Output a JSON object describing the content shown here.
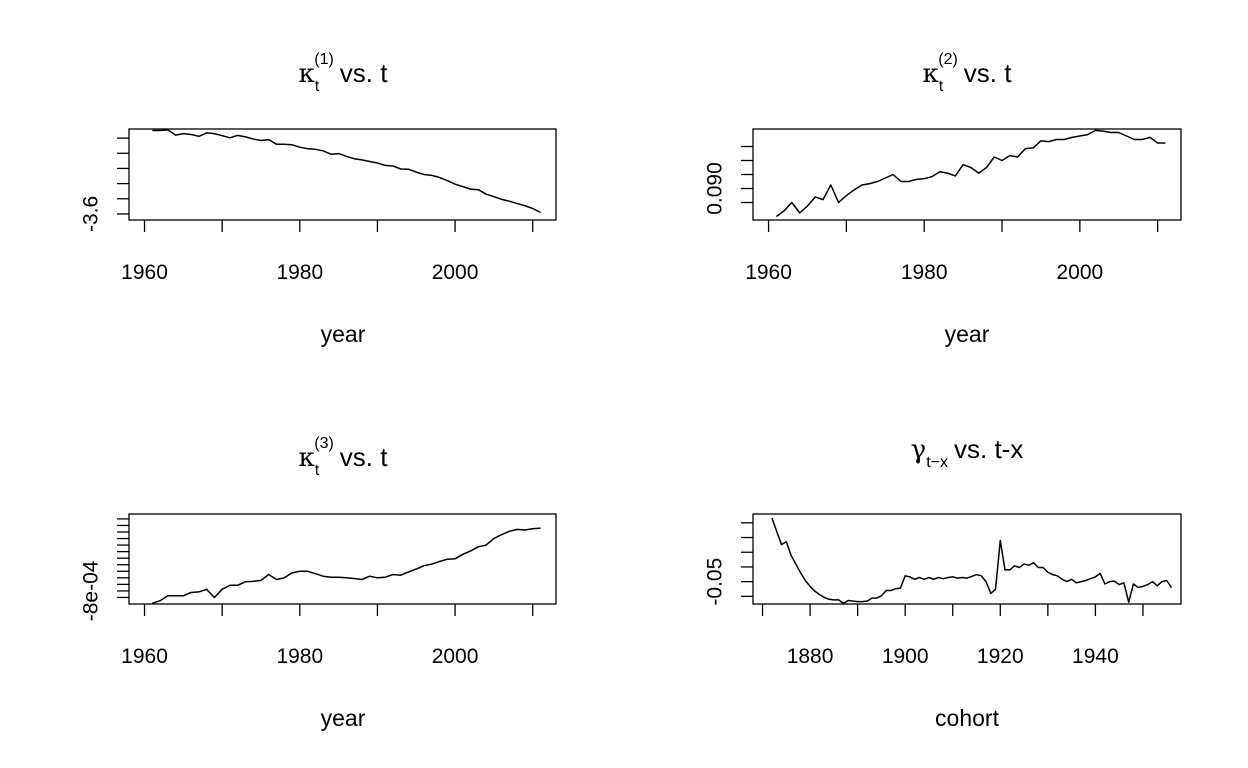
{
  "chart_data": [
    {
      "type": "line",
      "title": {
        "symbol": "κ",
        "sub": "t",
        "sup": "(1)",
        "text": "vs. t"
      },
      "xlabel": "year",
      "ylabel": "",
      "xlim": [
        1958,
        2013
      ],
      "ylim": [
        -3.62,
        -3.32
      ],
      "x_ticks": [
        1960,
        1970,
        1980,
        1990,
        2000,
        2010
      ],
      "x_tick_labels": [
        "1960",
        "1980",
        "2000"
      ],
      "y_ticks": [
        -3.6,
        -3.55,
        -3.5,
        -3.45,
        -3.4,
        -3.35
      ],
      "y_tick_labels": [
        "-3.6"
      ],
      "grid": false,
      "legend": "none",
      "x": [
        1961,
        1962,
        1963,
        1964,
        1965,
        1966,
        1967,
        1968,
        1969,
        1970,
        1971,
        1972,
        1973,
        1974,
        1975,
        1976,
        1977,
        1978,
        1979,
        1980,
        1981,
        1982,
        1983,
        1984,
        1985,
        1986,
        1987,
        1988,
        1989,
        1990,
        1991,
        1992,
        1993,
        1994,
        1995,
        1996,
        1997,
        1998,
        1999,
        2000,
        2001,
        2002,
        2003,
        2004,
        2005,
        2006,
        2007,
        2008,
        2009,
        2010,
        2011
      ],
      "values": [
        -3.325,
        -3.325,
        -3.323,
        -3.34,
        -3.335,
        -3.338,
        -3.344,
        -3.333,
        -3.335,
        -3.342,
        -3.349,
        -3.341,
        -3.346,
        -3.353,
        -3.358,
        -3.355,
        -3.37,
        -3.37,
        -3.372,
        -3.38,
        -3.385,
        -3.387,
        -3.392,
        -3.403,
        -3.401,
        -3.41,
        -3.418,
        -3.422,
        -3.427,
        -3.432,
        -3.44,
        -3.442,
        -3.452,
        -3.453,
        -3.462,
        -3.47,
        -3.473,
        -3.48,
        -3.49,
        -3.502,
        -3.51,
        -3.518,
        -3.52,
        -3.535,
        -3.543,
        -3.552,
        -3.558,
        -3.566,
        -3.573,
        -3.582,
        -3.595
      ]
    },
    {
      "type": "line",
      "title": {
        "symbol": "κ",
        "sub": "t",
        "sup": "(2)",
        "text": "vs. t"
      },
      "xlabel": "year",
      "ylabel": "",
      "xlim": [
        1958,
        2013
      ],
      "ylim": [
        0.0855,
        0.0985
      ],
      "x_ticks": [
        1960,
        1970,
        1980,
        1990,
        2000,
        2010
      ],
      "x_tick_labels": [
        "1960",
        "1980",
        "2000"
      ],
      "y_ticks": [
        0.088,
        0.09,
        0.092,
        0.094,
        0.096
      ],
      "y_tick_labels": [
        "0.090"
      ],
      "grid": false,
      "legend": "none",
      "x": [
        1961,
        1962,
        1963,
        1964,
        1965,
        1966,
        1967,
        1968,
        1969,
        1970,
        1971,
        1972,
        1973,
        1974,
        1975,
        1976,
        1977,
        1978,
        1979,
        1980,
        1981,
        1982,
        1983,
        1984,
        1985,
        1986,
        1987,
        1988,
        1989,
        1990,
        1991,
        1992,
        1993,
        1994,
        1995,
        1996,
        1997,
        1998,
        1999,
        2000,
        2001,
        2002,
        2003,
        2004,
        2005,
        2006,
        2007,
        2008,
        2009,
        2010,
        2011
      ],
      "values": [
        0.086,
        0.0868,
        0.088,
        0.0865,
        0.0875,
        0.0888,
        0.0884,
        0.0905,
        0.088,
        0.089,
        0.0898,
        0.0905,
        0.0907,
        0.091,
        0.0915,
        0.092,
        0.091,
        0.091,
        0.0913,
        0.0914,
        0.0917,
        0.0924,
        0.0922,
        0.0918,
        0.0934,
        0.093,
        0.0922,
        0.093,
        0.0945,
        0.094,
        0.0947,
        0.0945,
        0.0957,
        0.0958,
        0.0968,
        0.0967,
        0.097,
        0.097,
        0.0973,
        0.0975,
        0.0977,
        0.0983,
        0.0982,
        0.098,
        0.098,
        0.0975,
        0.097,
        0.097,
        0.0973,
        0.0965,
        0.0965
      ]
    },
    {
      "type": "line",
      "title": {
        "symbol": "κ",
        "sub": "t",
        "sup": "(3)",
        "text": "vs. t"
      },
      "xlabel": "year",
      "ylabel": "",
      "xlim": [
        1958,
        2013
      ],
      "ylim": [
        -0.00084,
        -0.000565
      ],
      "x_ticks": [
        1960,
        1970,
        1980,
        1990,
        2000,
        2010
      ],
      "x_tick_labels": [
        "1960",
        "1980",
        "2000"
      ],
      "y_ticks": [
        -0.00082,
        -0.0008,
        -0.00078,
        -0.00076,
        -0.00074,
        -0.00072,
        -0.0007,
        -0.00068,
        -0.00066,
        -0.00064,
        -0.00062,
        -0.0006,
        -0.00058
      ],
      "y_tick_labels": [
        "-8e-04"
      ],
      "grid": false,
      "legend": "none",
      "x": [
        1961,
        1962,
        1963,
        1964,
        1965,
        1966,
        1967,
        1968,
        1969,
        1970,
        1971,
        1972,
        1973,
        1974,
        1975,
        1976,
        1977,
        1978,
        1979,
        1980,
        1981,
        1982,
        1983,
        1984,
        1985,
        1986,
        1987,
        1988,
        1989,
        1990,
        1991,
        1992,
        1993,
        1994,
        1995,
        1996,
        1997,
        1998,
        1999,
        2000,
        2001,
        2002,
        2003,
        2004,
        2005,
        2006,
        2007,
        2008,
        2009,
        2010,
        2011
      ],
      "values": [
        -0.000838,
        -0.00083,
        -0.000815,
        -0.000815,
        -0.000815,
        -0.000805,
        -0.000803,
        -0.000795,
        -0.00082,
        -0.000795,
        -0.000783,
        -0.000783,
        -0.000772,
        -0.000771,
        -0.000768,
        -0.00075,
        -0.000765,
        -0.00076,
        -0.000745,
        -0.00074,
        -0.00074,
        -0.000747,
        -0.000755,
        -0.000758,
        -0.000758,
        -0.00076,
        -0.000762,
        -0.000765,
        -0.000755,
        -0.00076,
        -0.000758,
        -0.00075,
        -0.000752,
        -0.000742,
        -0.000733,
        -0.000723,
        -0.000718,
        -0.00071,
        -0.000703,
        -0.000702,
        -0.000688,
        -0.000678,
        -0.000665,
        -0.00066,
        -0.00064,
        -0.000628,
        -0.000618,
        -0.000612,
        -0.000614,
        -0.00061,
        -0.000608
      ]
    },
    {
      "type": "line",
      "title": {
        "symbol": "γ",
        "sub": "t−x",
        "sup": "",
        "text": "vs. t-x"
      },
      "xlabel": "cohort",
      "ylabel": "",
      "xlim": [
        1868,
        1958
      ],
      "ylim": [
        -0.088,
        0.065
      ],
      "x_ticks": [
        1870,
        1880,
        1890,
        1900,
        1910,
        1920,
        1930,
        1940,
        1950
      ],
      "x_tick_labels": [
        "1880",
        "1900",
        "1920",
        "1940"
      ],
      "y_ticks": [
        -0.075,
        -0.05,
        -0.025,
        0,
        0.025,
        0.05
      ],
      "y_tick_labels": [
        "-0.05"
      ],
      "grid": false,
      "legend": "none",
      "x": [
        1872,
        1873,
        1874,
        1875,
        1876,
        1877,
        1878,
        1879,
        1880,
        1881,
        1882,
        1883,
        1884,
        1885,
        1886,
        1887,
        1888,
        1889,
        1890,
        1891,
        1892,
        1893,
        1894,
        1895,
        1896,
        1897,
        1898,
        1899,
        1900,
        1901,
        1902,
        1903,
        1904,
        1905,
        1906,
        1907,
        1908,
        1909,
        1910,
        1911,
        1912,
        1913,
        1914,
        1915,
        1916,
        1917,
        1918,
        1919,
        1920,
        1921,
        1922,
        1923,
        1924,
        1925,
        1926,
        1927,
        1928,
        1929,
        1930,
        1931,
        1932,
        1933,
        1934,
        1935,
        1936,
        1937,
        1938,
        1939,
        1940,
        1941,
        1942,
        1943,
        1944,
        1945,
        1946,
        1947,
        1948,
        1949,
        1950,
        1951,
        1952,
        1953,
        1954,
        1955,
        1956
      ],
      "values": [
        0.058,
        0.035,
        0.013,
        0.018,
        -0.005,
        -0.02,
        -0.035,
        -0.048,
        -0.058,
        -0.066,
        -0.072,
        -0.077,
        -0.08,
        -0.081,
        -0.081,
        -0.087,
        -0.082,
        -0.083,
        -0.084,
        -0.084,
        -0.083,
        -0.078,
        -0.078,
        -0.074,
        -0.065,
        -0.065,
        -0.062,
        -0.061,
        -0.04,
        -0.042,
        -0.046,
        -0.043,
        -0.046,
        -0.043,
        -0.046,
        -0.043,
        -0.045,
        -0.043,
        -0.042,
        -0.044,
        -0.043,
        -0.044,
        -0.041,
        -0.038,
        -0.04,
        -0.05,
        -0.07,
        -0.063,
        0.02,
        -0.03,
        -0.03,
        -0.023,
        -0.026,
        -0.02,
        -0.022,
        -0.018,
        -0.026,
        -0.026,
        -0.034,
        -0.038,
        -0.04,
        -0.046,
        -0.05,
        -0.046,
        -0.052,
        -0.05,
        -0.048,
        -0.045,
        -0.042,
        -0.036,
        -0.054,
        -0.05,
        -0.049,
        -0.055,
        -0.052,
        -0.085,
        -0.054,
        -0.06,
        -0.058,
        -0.055,
        -0.05,
        -0.057,
        -0.05,
        -0.048,
        -0.06
      ]
    }
  ]
}
